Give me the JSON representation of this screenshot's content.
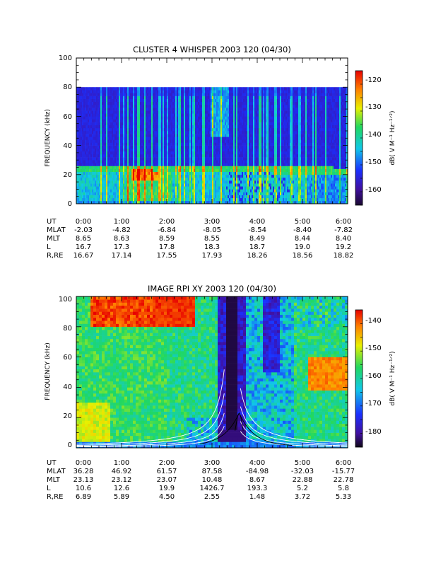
{
  "chart_data": [
    {
      "type": "heatmap",
      "title": "CLUSTER 4 WHISPER 2003 120 (04/30)",
      "ylabel": "FREQUENCY (kHz)",
      "xlim": [
        "0:00",
        "6:00"
      ],
      "ylim": [
        0,
        100
      ],
      "data_ylim": [
        0,
        80
      ],
      "yticks": [
        "0",
        "20",
        "40",
        "60",
        "80",
        "100"
      ],
      "colorbar": {
        "label": "dB( V M⁻¹ Hz⁻¹ᐟ²)",
        "range": [
          -167,
          -118
        ],
        "ticks": [
          "-120",
          "-130",
          "-140",
          "-150",
          "-160"
        ]
      },
      "ephemeris": {
        "labels": [
          "UT",
          "MLAT",
          "MLT",
          "L",
          "R,RE"
        ],
        "columns": [
          {
            "ut": "0:00",
            "mlat": "-2.03",
            "mlt": "8.65",
            "l": "16.7",
            "r": "16.67"
          },
          {
            "ut": "1:00",
            "mlat": "-4.82",
            "mlt": "8.63",
            "l": "17.3",
            "r": "17.14"
          },
          {
            "ut": "2:00",
            "mlat": "-6.84",
            "mlt": "8.59",
            "l": "17.8",
            "r": "17.55"
          },
          {
            "ut": "3:00",
            "mlat": "-8.05",
            "mlt": "8.55",
            "l": "18.3",
            "r": "17.93"
          },
          {
            "ut": "4:00",
            "mlat": "-8.54",
            "mlt": "8.49",
            "l": "18.7",
            "r": "18.26"
          },
          {
            "ut": "5:00",
            "mlat": "-8.40",
            "mlt": "8.44",
            "l": "19.0",
            "r": "18.56"
          },
          {
            "ut": "6:00",
            "mlat": "-7.82",
            "mlt": "8.40",
            "l": "19.2",
            "r": "18.82"
          }
        ]
      }
    },
    {
      "type": "heatmap",
      "title": "IMAGE RPI XY 2003 120 (04/30)",
      "ylabel": "FREQUENCY (kHz)",
      "xlim": [
        "0:00",
        "6:00"
      ],
      "ylim": [
        0,
        100
      ],
      "yticks": [
        "0",
        "20",
        "40",
        "60",
        "80",
        "100"
      ],
      "colorbar": {
        "label": "dB( V M⁻¹ Hz⁻¹ᐟ²)",
        "range": [
          -186,
          -134
        ],
        "ticks": [
          "-140",
          "-150",
          "-160",
          "-170",
          "-180"
        ]
      },
      "ephemeris": {
        "labels": [
          "UT",
          "MLAT",
          "MLT",
          "L",
          "R,RE"
        ],
        "columns": [
          {
            "ut": "0:00",
            "mlat": "36.28",
            "mlt": "23.13",
            "l": "10.6",
            "r": "6.89"
          },
          {
            "ut": "1:00",
            "mlat": "46.92",
            "mlt": "23.12",
            "l": "12.6",
            "r": "5.89"
          },
          {
            "ut": "2:00",
            "mlat": "61.57",
            "mlt": "23.07",
            "l": "19.9",
            "r": "4.50"
          },
          {
            "ut": "3:00",
            "mlat": "87.58",
            "mlt": "10.48",
            "l": "1426.7",
            "r": "2.55"
          },
          {
            "ut": "4:00",
            "mlat": "-84.98",
            "mlt": "8.67",
            "l": "193.3",
            "r": "1.48"
          },
          {
            "ut": "5:00",
            "mlat": "-32.03",
            "mlt": "22.88",
            "l": "5.2",
            "r": "3.72"
          },
          {
            "ut": "6:00",
            "mlat": "-15.77",
            "mlt": "22.78",
            "l": "5.8",
            "r": "5.33"
          }
        ]
      }
    }
  ]
}
